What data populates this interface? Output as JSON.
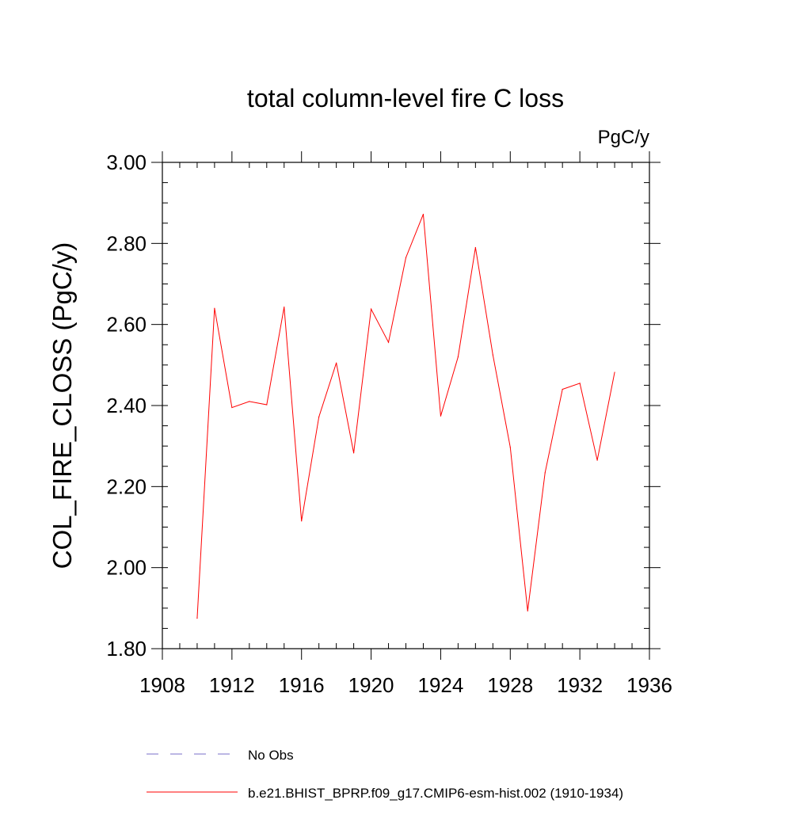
{
  "chart_data": {
    "type": "line",
    "title": "total column-level fire C loss",
    "units": "PgC/y",
    "xlabel": "",
    "ylabel": "COL_FIRE_CLOSS  (PgC/y)",
    "xlim": [
      1908,
      1936
    ],
    "ylim": [
      1.8,
      3.0
    ],
    "x_major_ticks": [
      1908,
      1912,
      1916,
      1920,
      1924,
      1928,
      1932,
      1936
    ],
    "x_minor_step": 1,
    "y_major_ticks": [
      1.8,
      2.0,
      2.2,
      2.4,
      2.6,
      2.8,
      3.0
    ],
    "y_tick_labels": [
      "1.80",
      "2.00",
      "2.20",
      "2.40",
      "2.60",
      "2.80",
      "3.00"
    ],
    "y_minor_step": 0.05,
    "grid": false,
    "series": [
      {
        "name": "b.e21.BHIST_BPRP.f09_g17.CMIP6-esm-hist.002 (1910-1934)",
        "color": "#ff0000",
        "style": "solid",
        "x": [
          1910,
          1911,
          1912,
          1913,
          1914,
          1915,
          1916,
          1917,
          1918,
          1919,
          1920,
          1921,
          1922,
          1923,
          1924,
          1925,
          1926,
          1927,
          1928,
          1929,
          1930,
          1931,
          1932,
          1933,
          1934
        ],
        "y": [
          1.875,
          2.64,
          2.395,
          2.41,
          2.402,
          2.643,
          2.115,
          2.372,
          2.505,
          2.283,
          2.638,
          2.556,
          2.765,
          2.872,
          2.374,
          2.52,
          2.79,
          2.525,
          2.297,
          1.893,
          2.234,
          2.44,
          2.455,
          2.265,
          2.482
        ]
      }
    ],
    "legend": {
      "placement": "bottom",
      "entries": [
        {
          "label": "No Obs",
          "color": "#7a6fc9",
          "style": "dashed"
        },
        {
          "label": "b.e21.BHIST_BPRP.f09_g17.CMIP6-esm-hist.002 (1910-1934)",
          "color": "#ff0000",
          "style": "solid"
        }
      ]
    }
  }
}
